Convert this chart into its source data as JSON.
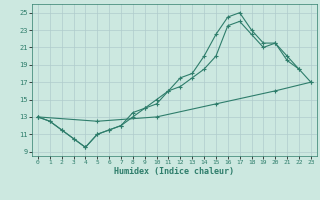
{
  "line1_x": [
    0,
    1,
    2,
    3,
    4,
    5,
    6,
    7,
    8,
    9,
    10,
    11,
    12,
    13,
    14,
    15,
    16,
    17,
    18,
    19,
    20,
    21,
    22
  ],
  "line1_y": [
    13,
    12.5,
    11.5,
    10.5,
    9.5,
    11,
    11.5,
    12,
    13.5,
    14,
    15,
    16,
    17.5,
    18,
    20,
    22.5,
    24.5,
    25,
    23,
    21.5,
    21.5,
    19.5,
    18.5
  ],
  "line2_x": [
    0,
    1,
    2,
    3,
    4,
    5,
    6,
    7,
    8,
    9,
    10,
    11,
    12,
    13,
    14,
    15,
    16,
    17,
    18,
    19,
    20,
    21,
    22,
    23
  ],
  "line2_y": [
    13,
    12.5,
    11.5,
    10.5,
    9.5,
    11,
    11.5,
    12,
    13,
    14,
    14.5,
    16,
    16.5,
    17.5,
    18.5,
    20,
    23.5,
    24,
    22.5,
    21,
    21.5,
    20,
    18.5,
    17
  ],
  "line3_x": [
    0,
    5,
    10,
    15,
    20,
    23
  ],
  "line3_y": [
    13,
    12.5,
    13,
    14.5,
    16,
    17
  ],
  "color": "#2e7d6b",
  "bg_color": "#cce8e0",
  "grid_color": "#b0cccc",
  "xlabel": "Humidex (Indice chaleur)",
  "xlim": [
    -0.5,
    23.5
  ],
  "ylim": [
    8.5,
    26
  ],
  "xticks": [
    0,
    1,
    2,
    3,
    4,
    5,
    6,
    7,
    8,
    9,
    10,
    11,
    12,
    13,
    14,
    15,
    16,
    17,
    18,
    19,
    20,
    21,
    22,
    23
  ],
  "yticks": [
    9,
    11,
    13,
    15,
    17,
    19,
    21,
    23,
    25
  ],
  "marker": "+"
}
